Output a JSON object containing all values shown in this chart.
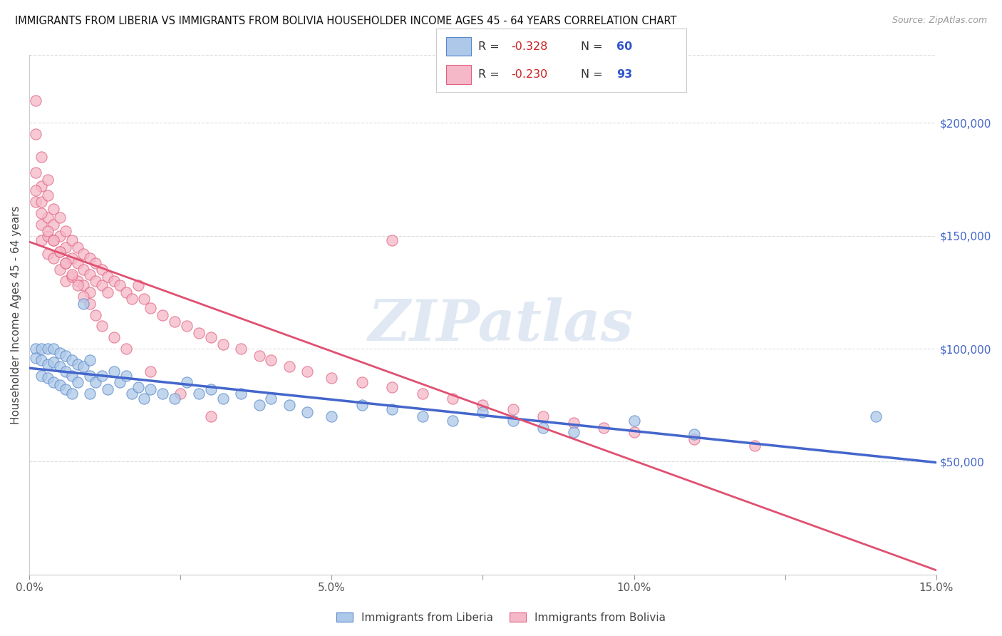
{
  "title": "IMMIGRANTS FROM LIBERIA VS IMMIGRANTS FROM BOLIVIA HOUSEHOLDER INCOME AGES 45 - 64 YEARS CORRELATION CHART",
  "source": "Source: ZipAtlas.com",
  "ylabel": "Householder Income Ages 45 - 64 years",
  "xlim": [
    0.0,
    0.15
  ],
  "ylim": [
    0,
    230000
  ],
  "xticks": [
    0.0,
    0.025,
    0.05,
    0.075,
    0.1,
    0.125,
    0.15
  ],
  "xticklabels": [
    "0.0%",
    "",
    "5.0%",
    "",
    "10.0%",
    "",
    "15.0%"
  ],
  "yticks_right": [
    50000,
    100000,
    150000,
    200000
  ],
  "yticklabels_right": [
    "$50,000",
    "$100,000",
    "$150,000",
    "$200,000"
  ],
  "background_color": "#ffffff",
  "grid_color": "#dddddd",
  "liberia_fill": "#adc8e8",
  "liberia_edge": "#5588cc",
  "bolivia_fill": "#f5b8c8",
  "bolivia_edge": "#e06080",
  "liberia_line_color": "#4466cc",
  "bolivia_line_color": "#e05070",
  "legend_text_color": "#3355cc",
  "legend_R_color": "#cc2222",
  "watermark": "ZIPatlas",
  "liberia_x": [
    0.001,
    0.001,
    0.002,
    0.002,
    0.002,
    0.003,
    0.003,
    0.003,
    0.004,
    0.004,
    0.004,
    0.005,
    0.005,
    0.005,
    0.006,
    0.006,
    0.006,
    0.007,
    0.007,
    0.007,
    0.008,
    0.008,
    0.009,
    0.009,
    0.01,
    0.01,
    0.01,
    0.011,
    0.012,
    0.013,
    0.014,
    0.015,
    0.016,
    0.017,
    0.018,
    0.019,
    0.02,
    0.022,
    0.024,
    0.026,
    0.028,
    0.03,
    0.032,
    0.035,
    0.038,
    0.04,
    0.043,
    0.046,
    0.05,
    0.055,
    0.06,
    0.065,
    0.07,
    0.075,
    0.08,
    0.085,
    0.09,
    0.1,
    0.11,
    0.14
  ],
  "liberia_y": [
    100000,
    96000,
    100000,
    95000,
    88000,
    100000,
    93000,
    87000,
    100000,
    94000,
    85000,
    98000,
    92000,
    84000,
    97000,
    90000,
    82000,
    95000,
    88000,
    80000,
    93000,
    85000,
    120000,
    92000,
    95000,
    88000,
    80000,
    85000,
    88000,
    82000,
    90000,
    85000,
    88000,
    80000,
    83000,
    78000,
    82000,
    80000,
    78000,
    85000,
    80000,
    82000,
    78000,
    80000,
    75000,
    78000,
    75000,
    72000,
    70000,
    75000,
    73000,
    70000,
    68000,
    72000,
    68000,
    65000,
    63000,
    68000,
    62000,
    70000
  ],
  "bolivia_x": [
    0.001,
    0.001,
    0.001,
    0.001,
    0.002,
    0.002,
    0.002,
    0.002,
    0.002,
    0.003,
    0.003,
    0.003,
    0.003,
    0.003,
    0.004,
    0.004,
    0.004,
    0.004,
    0.005,
    0.005,
    0.005,
    0.005,
    0.006,
    0.006,
    0.006,
    0.006,
    0.007,
    0.007,
    0.007,
    0.008,
    0.008,
    0.008,
    0.009,
    0.009,
    0.009,
    0.01,
    0.01,
    0.01,
    0.011,
    0.011,
    0.012,
    0.012,
    0.013,
    0.013,
    0.014,
    0.015,
    0.016,
    0.017,
    0.018,
    0.019,
    0.02,
    0.022,
    0.024,
    0.026,
    0.028,
    0.03,
    0.032,
    0.035,
    0.038,
    0.04,
    0.043,
    0.046,
    0.05,
    0.055,
    0.06,
    0.065,
    0.07,
    0.075,
    0.08,
    0.085,
    0.09,
    0.095,
    0.1,
    0.11,
    0.12,
    0.001,
    0.002,
    0.003,
    0.004,
    0.005,
    0.006,
    0.007,
    0.008,
    0.009,
    0.01,
    0.011,
    0.012,
    0.014,
    0.016,
    0.02,
    0.025,
    0.03,
    0.06
  ],
  "bolivia_y": [
    210000,
    195000,
    178000,
    165000,
    185000,
    172000,
    165000,
    155000,
    148000,
    175000,
    168000,
    158000,
    150000,
    142000,
    162000,
    155000,
    148000,
    140000,
    158000,
    150000,
    143000,
    135000,
    152000,
    145000,
    138000,
    130000,
    148000,
    140000,
    132000,
    145000,
    138000,
    130000,
    142000,
    135000,
    128000,
    140000,
    133000,
    125000,
    138000,
    130000,
    135000,
    128000,
    132000,
    125000,
    130000,
    128000,
    125000,
    122000,
    128000,
    122000,
    118000,
    115000,
    112000,
    110000,
    107000,
    105000,
    102000,
    100000,
    97000,
    95000,
    92000,
    90000,
    87000,
    85000,
    83000,
    80000,
    78000,
    75000,
    73000,
    70000,
    67000,
    65000,
    63000,
    60000,
    57000,
    170000,
    160000,
    152000,
    148000,
    143000,
    138000,
    133000,
    128000,
    123000,
    120000,
    115000,
    110000,
    105000,
    100000,
    90000,
    80000,
    70000,
    148000
  ]
}
